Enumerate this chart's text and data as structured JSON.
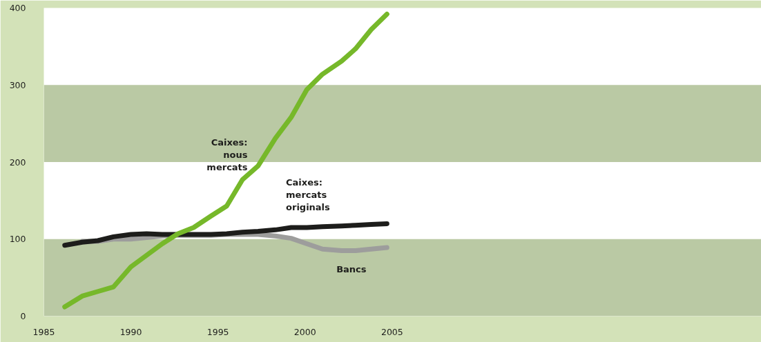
{
  "chart_data": {
    "type": "line",
    "xlim": [
      1985,
      2026.2
    ],
    "ylim": [
      0,
      400
    ],
    "xticks": [
      1985,
      1990,
      1995,
      2000,
      2005
    ],
    "yticks": [
      0,
      100,
      200,
      300,
      400
    ],
    "grid": false,
    "line_style": "solid",
    "marker": "none",
    "bands": [
      {
        "axis": "y",
        "from": 0,
        "to": 100,
        "color": "#bac9a4"
      },
      {
        "axis": "y",
        "from": 200,
        "to": 300,
        "color": "#bac9a4"
      }
    ],
    "series": [
      {
        "name": "Bancs",
        "color": "#9d9d9c",
        "x": [
          1987.2,
          1988.1,
          1989.0,
          1990.0,
          1990.9,
          1991.8,
          1992.7,
          1993.6,
          1994.6,
          1995.5,
          1996.4,
          1997.3,
          1998.3,
          1999.2,
          2000.1,
          2001.0,
          2002.1,
          2002.9,
          2003.8,
          2004.7
        ],
        "values": [
          97,
          97,
          100,
          100,
          102,
          104,
          105,
          105,
          105,
          106,
          106,
          106,
          104,
          101,
          94,
          87,
          85,
          85,
          87,
          89
        ]
      },
      {
        "name": "Caixes:\nmercats\noriginals",
        "color": "#1d1d1b",
        "x": [
          1986.2,
          1987.2,
          1988.1,
          1989.0,
          1990.0,
          1990.9,
          1991.8,
          1992.7,
          1993.6,
          1994.6,
          1995.5,
          1996.4,
          1997.3,
          1998.3,
          1999.2,
          2000.1,
          2001.0,
          2002.1,
          2002.9,
          2003.8,
          2004.7
        ],
        "values": [
          92,
          96,
          98,
          103,
          106,
          107,
          106,
          106,
          106,
          106,
          107,
          109,
          110,
          112,
          115,
          115,
          116,
          117,
          118,
          119,
          120
        ]
      },
      {
        "name": "Caixes:\nnous\nmercats",
        "color": "#76b82a",
        "x": [
          1986.2,
          1987.2,
          1988.1,
          1989.0,
          1990.0,
          1990.9,
          1991.8,
          1992.7,
          1993.6,
          1994.6,
          1995.5,
          1996.4,
          1997.3,
          1998.3,
          1999.2,
          2000.1,
          2001.0,
          2002.1,
          2002.9,
          2003.8,
          2004.7
        ],
        "values": [
          12,
          26,
          32,
          38,
          64,
          79,
          94,
          107,
          115,
          130,
          143,
          177,
          195,
          231,
          258,
          294,
          314,
          331,
          347,
          372,
          392
        ]
      }
    ]
  }
}
